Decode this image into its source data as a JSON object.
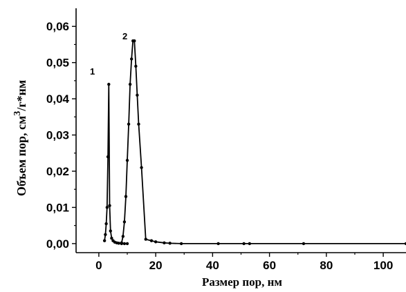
{
  "chart_data": {
    "type": "line",
    "xlabel": "Размер пор, нм",
    "ylabel_main": "Объем пор, см",
    "ylabel_sup": "3",
    "ylabel_tail": "/г*нм",
    "xlim": [
      -8,
      108
    ],
    "ylim": [
      -0.0025,
      0.065
    ],
    "x_ticks": [
      0,
      20,
      40,
      60,
      80,
      100
    ],
    "x_tick_labels": [
      "0",
      "20",
      "40",
      "60",
      "80",
      "100"
    ],
    "y_ticks": [
      0.0,
      0.01,
      0.02,
      0.03,
      0.04,
      0.05,
      0.06
    ],
    "y_tick_labels": [
      "0,00",
      "0,01",
      "0,02",
      "0,03",
      "0,04",
      "0,05",
      "0,06"
    ],
    "grid": false,
    "series": [
      {
        "name": "1",
        "x": [
          2.0,
          2.3,
          2.6,
          2.9,
          3.2,
          3.5,
          3.8,
          4.1,
          4.5,
          5.0,
          5.6,
          6.3,
          7.0,
          8.0,
          9.0,
          10.0
        ],
        "y": [
          0.0008,
          0.0025,
          0.0055,
          0.01,
          0.024,
          0.044,
          0.0105,
          0.0035,
          0.0015,
          0.0008,
          0.0004,
          0.0002,
          0.0001,
          0.0,
          0.0,
          0.0
        ]
      },
      {
        "name": "2",
        "x": [
          8.0,
          8.5,
          9.0,
          9.5,
          10.0,
          10.5,
          11.0,
          11.5,
          12.0,
          12.5,
          13.0,
          13.5,
          14.0,
          15.0,
          16.5,
          18.5,
          20.0,
          23.0,
          25.0,
          29.0,
          42.0,
          51.0,
          53.0,
          72.0,
          108.0
        ],
        "y": [
          0.0002,
          0.002,
          0.006,
          0.013,
          0.023,
          0.033,
          0.044,
          0.051,
          0.056,
          0.056,
          0.049,
          0.041,
          0.033,
          0.021,
          0.0012,
          0.0008,
          0.0005,
          0.0002,
          0.0001,
          0.0,
          0.0,
          0.0,
          0.0,
          0.0,
          0.0
        ]
      }
    ]
  }
}
